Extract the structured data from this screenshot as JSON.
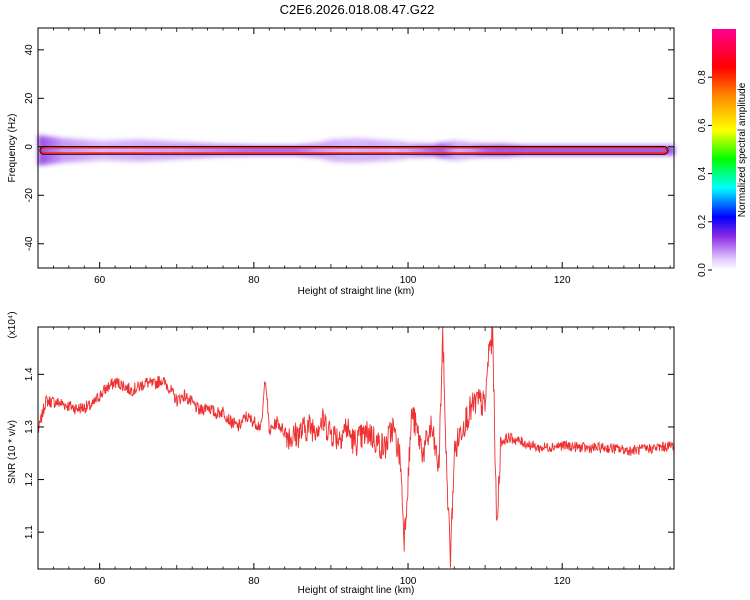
{
  "figure_title": "C2E6.2026.018.08.47.G22",
  "chart_data": [
    {
      "type": "heatmap",
      "ylabel": "Frequency (Hz)",
      "xlabel": "Height of straight line (km)",
      "xlim": [
        52,
        134.5
      ],
      "ylim": [
        -50,
        49
      ],
      "x_ticks": [
        60,
        80,
        100,
        120
      ],
      "y_ticks": [
        -40,
        -20,
        0,
        20,
        40
      ],
      "colorbar": {
        "label": "Normalized spectral amplitude",
        "range": [
          0,
          1
        ],
        "ticks": [
          "0.0",
          "0.2",
          "0.4",
          "0.6",
          "0.8"
        ],
        "colors": [
          "#ffffff",
          "#e0c8ff",
          "#8a2be2",
          "#0000ff",
          "#00ffff",
          "#00ff00",
          "#ffff00",
          "#ffa500",
          "#ff0000",
          "#ff00a0"
        ]
      },
      "ridge": {
        "x_start": 52,
        "x_end": 134.5,
        "frequency_hz": -1.5,
        "x_samples": [
          52,
          55,
          60,
          65,
          70,
          75,
          80,
          85,
          88,
          90,
          93,
          95,
          98,
          100,
          103,
          104,
          106,
          108,
          110,
          112,
          115,
          120,
          125,
          130,
          134.5
        ],
        "intensity": [
          1.0,
          0.6,
          0.45,
          0.5,
          0.55,
          0.7,
          0.85,
          0.85,
          0.6,
          0.5,
          0.45,
          0.5,
          0.45,
          0.55,
          0.85,
          0.95,
          0.5,
          0.6,
          0.9,
          0.95,
          0.95,
          0.95,
          0.95,
          0.95,
          0.95
        ],
        "spread_hz": [
          6,
          5,
          4,
          4.5,
          3.5,
          2.5,
          2,
          2,
          3,
          4.5,
          5,
          4.5,
          4,
          3,
          2.5,
          3,
          4,
          3,
          2.5,
          2.5,
          2,
          2,
          2,
          2,
          2
        ]
      }
    },
    {
      "type": "line",
      "multiplier_label": "(x10⁴)",
      "ylabel": "SNR (10 * v/v)",
      "xlabel": "Height of straight line (km)",
      "xlim": [
        52,
        134.5
      ],
      "ylim": [
        1.03,
        1.49
      ],
      "x_ticks": [
        60,
        80,
        100,
        120
      ],
      "y_ticks": [
        "1.1",
        "1.2",
        "1.3",
        "1.4"
      ],
      "line_color": "#ee3030",
      "series": [
        {
          "x": [
            52,
            53,
            55,
            57,
            59,
            60,
            61,
            62,
            63,
            64,
            65,
            66,
            67,
            68,
            69,
            70,
            71,
            72,
            73,
            74,
            75,
            76,
            77,
            78,
            79,
            80,
            81,
            81.5,
            82,
            83,
            84,
            85,
            86,
            87,
            88,
            89,
            90,
            91,
            92,
            93,
            94,
            95,
            96,
            97,
            98,
            99,
            99.5,
            100,
            100.5,
            101,
            102,
            103,
            104,
            104.5,
            105,
            105.5,
            106,
            107,
            108,
            109,
            110,
            110.5,
            111,
            111.5,
            112,
            113,
            115,
            117,
            120,
            123,
            126,
            129,
            132,
            134.5
          ],
          "y": [
            1.29,
            1.35,
            1.345,
            1.335,
            1.34,
            1.36,
            1.375,
            1.385,
            1.38,
            1.37,
            1.375,
            1.385,
            1.38,
            1.39,
            1.375,
            1.35,
            1.36,
            1.345,
            1.33,
            1.34,
            1.325,
            1.33,
            1.31,
            1.3,
            1.32,
            1.31,
            1.3,
            1.4,
            1.29,
            1.31,
            1.29,
            1.28,
            1.29,
            1.3,
            1.3,
            1.31,
            1.29,
            1.28,
            1.3,
            1.27,
            1.28,
            1.29,
            1.27,
            1.26,
            1.3,
            1.24,
            1.09,
            1.2,
            1.33,
            1.3,
            1.25,
            1.3,
            1.22,
            1.48,
            1.22,
            1.05,
            1.25,
            1.3,
            1.33,
            1.35,
            1.34,
            1.45,
            1.47,
            1.1,
            1.27,
            1.28,
            1.27,
            1.26,
            1.265,
            1.26,
            1.26,
            1.255,
            1.26,
            1.265
          ]
        }
      ]
    }
  ]
}
